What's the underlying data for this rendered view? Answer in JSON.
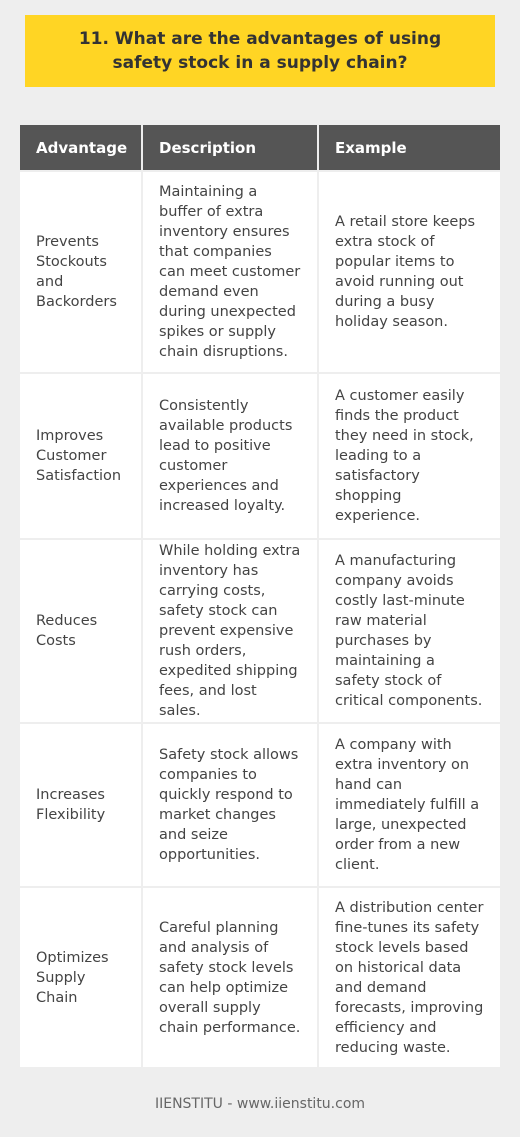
{
  "title": "11. What are the advantages of using safety stock in a supply chain?",
  "table": {
    "headers": [
      "Advantage",
      "Description",
      "Example"
    ],
    "rows": [
      {
        "advantage": "Prevents Stockouts and Backorders",
        "description": "Maintaining a buffer of extra inventory ensures that companies can meet customer demand even during unexpected spikes or supply chain disruptions.",
        "example": "A retail store keeps extra stock of popular items to avoid running out during a busy holiday season."
      },
      {
        "advantage": "Improves Customer Satisfaction",
        "description": "Consistently available products lead to positive customer experiences and increased loyalty.",
        "example": "A customer easily finds the product they need in stock, leading to a satisfactory shopping experience."
      },
      {
        "advantage": "Reduces Costs",
        "description": "While holding extra inventory has carrying costs, safety stock can prevent expensive rush orders, expedited shipping fees, and lost sales.",
        "example": "A manufacturing company avoids costly last-minute raw material purchases by maintaining a safety stock of critical components."
      },
      {
        "advantage": "Increases Flexibility",
        "description": "Safety stock allows companies to quickly respond to market changes and seize opportunities.",
        "example": "A company with extra inventory on hand can immediately fulfill a large, unexpected order from a new client."
      },
      {
        "advantage": "Optimizes Supply Chain",
        "description": "Careful planning and analysis of safety stock levels can help optimize overall supply chain performance.",
        "example": "A distribution center fine-tunes its safety stock levels based on historical data and demand forecasts, improving efficiency and reducing waste."
      }
    ]
  },
  "footer": "IIENSTITU - www.iienstitu.com",
  "colors": {
    "title_background": "#ffd524",
    "header_background": "#555555",
    "page_background": "#eeeeee"
  }
}
